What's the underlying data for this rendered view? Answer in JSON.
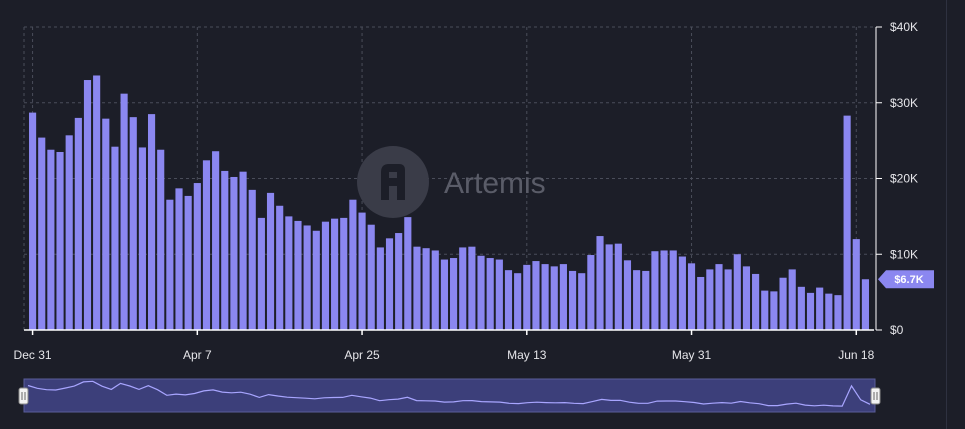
{
  "watermark": {
    "text": "Artemis",
    "icon": "artemis-logo-icon"
  },
  "colors": {
    "background": "#1c1e28",
    "bar": "#8b87f0",
    "badge": "#8b87f0",
    "navigator": "#3c3f7a"
  },
  "chart_data": {
    "type": "bar",
    "title": "",
    "xlabel": "",
    "ylabel": "",
    "ylim": [
      0,
      40000
    ],
    "grid": true,
    "y_ticks": [
      {
        "value": 0,
        "label": "$0"
      },
      {
        "value": 10000,
        "label": "$10K"
      },
      {
        "value": 20000,
        "label": "$20K"
      },
      {
        "value": 30000,
        "label": "$30K"
      },
      {
        "value": 40000,
        "label": "$40K"
      }
    ],
    "x_ticks": [
      {
        "index": 0,
        "label": "Dec 31"
      },
      {
        "index": 18,
        "label": "Apr 7"
      },
      {
        "index": 36,
        "label": "Apr 25"
      },
      {
        "index": 54,
        "label": "May 13"
      },
      {
        "index": 72,
        "label": "May 31"
      },
      {
        "index": 90,
        "label": "Jun 18"
      }
    ],
    "values": [
      28700,
      25400,
      23800,
      23500,
      25700,
      28000,
      33000,
      33600,
      27900,
      24200,
      31200,
      28100,
      24100,
      28500,
      23800,
      17200,
      18700,
      17700,
      19400,
      22400,
      23600,
      21000,
      20200,
      20900,
      18500,
      14800,
      18100,
      16400,
      15000,
      14400,
      13800,
      13100,
      14300,
      14700,
      14800,
      17200,
      15500,
      13900,
      10900,
      12100,
      12800,
      14900,
      11000,
      10800,
      10500,
      9300,
      9500,
      10900,
      11000,
      9800,
      9500,
      9300,
      7900,
      7500,
      8600,
      9100,
      8700,
      8400,
      8700,
      7800,
      7500,
      9900,
      12400,
      11300,
      11400,
      9200,
      7900,
      7800,
      10400,
      10500,
      10500,
      9700,
      8800,
      7000,
      8000,
      8700,
      8000,
      10000,
      8400,
      7400,
      5200,
      5100,
      6900,
      8000,
      5700,
      4900,
      5600,
      4800,
      4600,
      28300,
      12000,
      6700
    ],
    "current_value_label": "$6.7K",
    "navigator": {
      "range_start": 0,
      "range_end": 1
    }
  }
}
